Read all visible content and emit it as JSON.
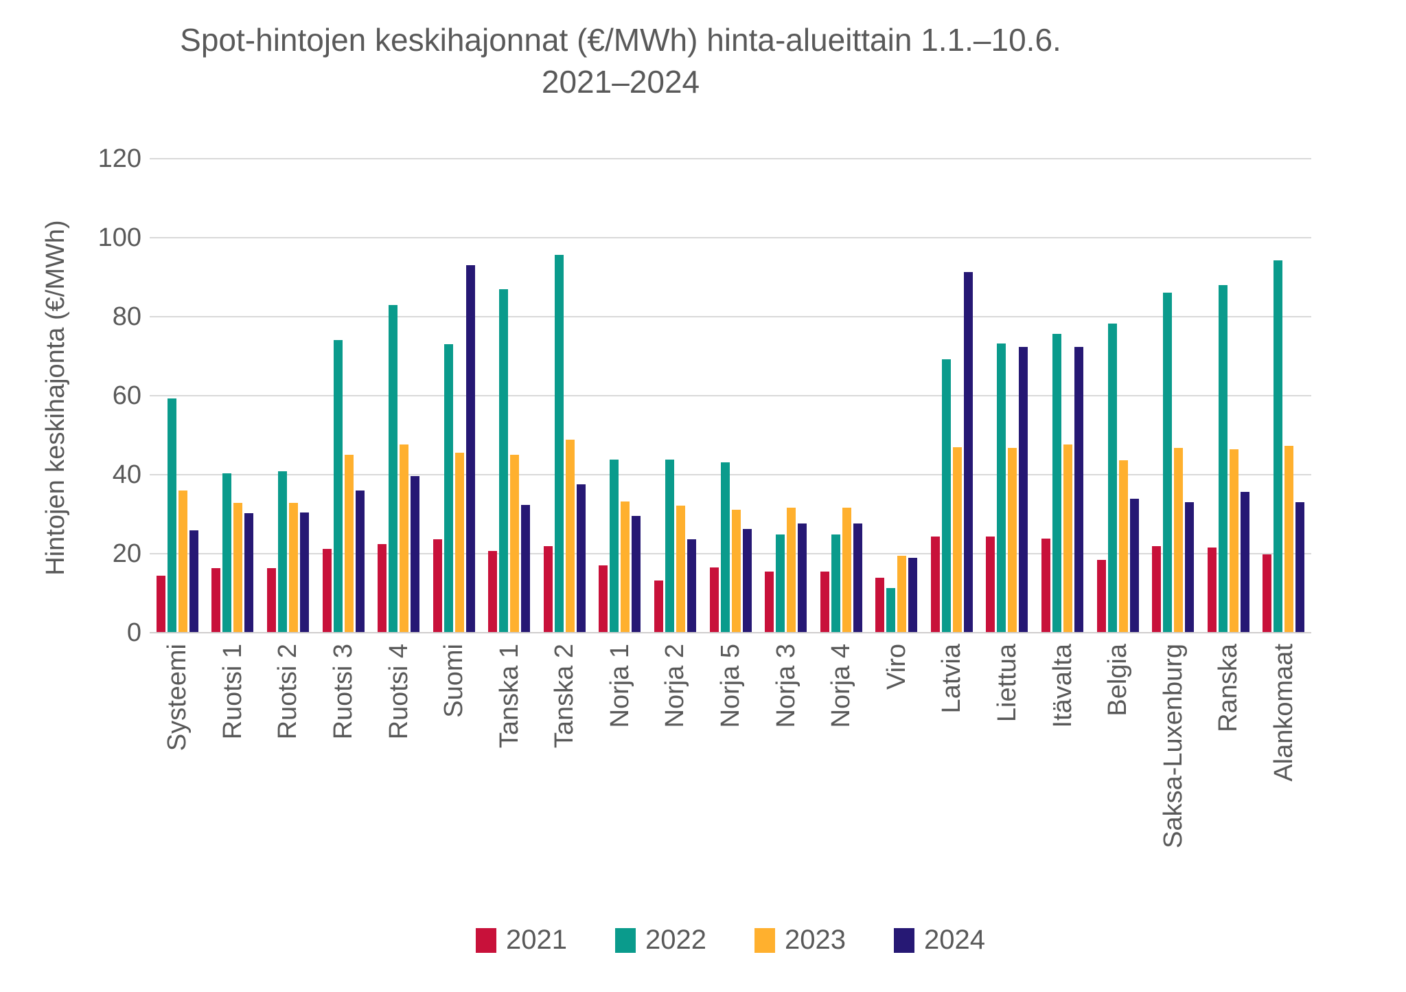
{
  "title": {
    "line1": "Spot-hintojen keskihajonnat (€/MWh) hinta-alueittain 1.1.–10.6.",
    "line2": "2021–2024"
  },
  "colors": {
    "grid": "#d9d9d9",
    "text": "#595959",
    "series_2021": "#c8113a",
    "series_2022": "#0a9b8c",
    "series_2023": "#ffb02e",
    "series_2024": "#261874"
  },
  "chart_data": {
    "type": "bar",
    "title": "Spot-hintojen keskihajonnat (€/MWh) hinta-alueittain 1.1.–10.6. 2021–2024",
    "ylabel": "Hintojen keskihajonta (€/MWh)",
    "xlabel": "",
    "ylim": [
      0,
      120
    ],
    "ytick_step": 20,
    "yticks": [
      120,
      100,
      80,
      60,
      40,
      20,
      0
    ],
    "grid": true,
    "legend_position": "bottom",
    "x_label_rotation": 90,
    "categories": [
      "Systeemi",
      "Ruotsi 1",
      "Ruotsi 2",
      "Ruotsi 3",
      "Ruotsi 4",
      "Suomi",
      "Tanska 1",
      "Tanska 2",
      "Norja 1",
      "Norja 2",
      "Norja 5",
      "Norja 3",
      "Norja 4",
      "Viro",
      "Latvia",
      "Liettua",
      "Itävalta",
      "Belgia",
      "Saksa-Luxenburg",
      "Ranska",
      "Alankomaat"
    ],
    "series": [
      {
        "name": "2021",
        "color": "#c8113a",
        "values": [
          14.5,
          16.4,
          16.4,
          21.3,
          22.4,
          23.7,
          20.7,
          21.9,
          17.0,
          13.3,
          16.6,
          15.4,
          15.4,
          14.0,
          24.3,
          24.3,
          23.8,
          18.4,
          21.9,
          21.6,
          19.9
        ]
      },
      {
        "name": "2022",
        "color": "#0a9b8c",
        "values": [
          59.3,
          40.4,
          40.9,
          74.1,
          82.9,
          73.1,
          87.0,
          95.7,
          43.9,
          43.8,
          43.2,
          24.8,
          24.8,
          11.3,
          69.2,
          73.3,
          75.7,
          78.3,
          86.1,
          88.0,
          94.3
        ]
      },
      {
        "name": "2023",
        "color": "#ffb02e",
        "values": [
          36.0,
          32.8,
          32.8,
          45.0,
          47.7,
          45.6,
          45.1,
          48.9,
          33.3,
          32.1,
          31.2,
          31.6,
          31.6,
          19.5,
          47.0,
          46.7,
          47.6,
          43.6,
          46.7,
          46.5,
          47.3
        ]
      },
      {
        "name": "2024",
        "color": "#261874",
        "values": [
          26.0,
          30.3,
          30.4,
          36.0,
          39.6,
          93.0,
          32.4,
          37.6,
          29.5,
          23.7,
          26.3,
          27.7,
          27.6,
          18.9,
          91.3,
          72.4,
          72.4,
          33.9,
          33.0,
          35.6,
          33.1
        ]
      }
    ]
  }
}
